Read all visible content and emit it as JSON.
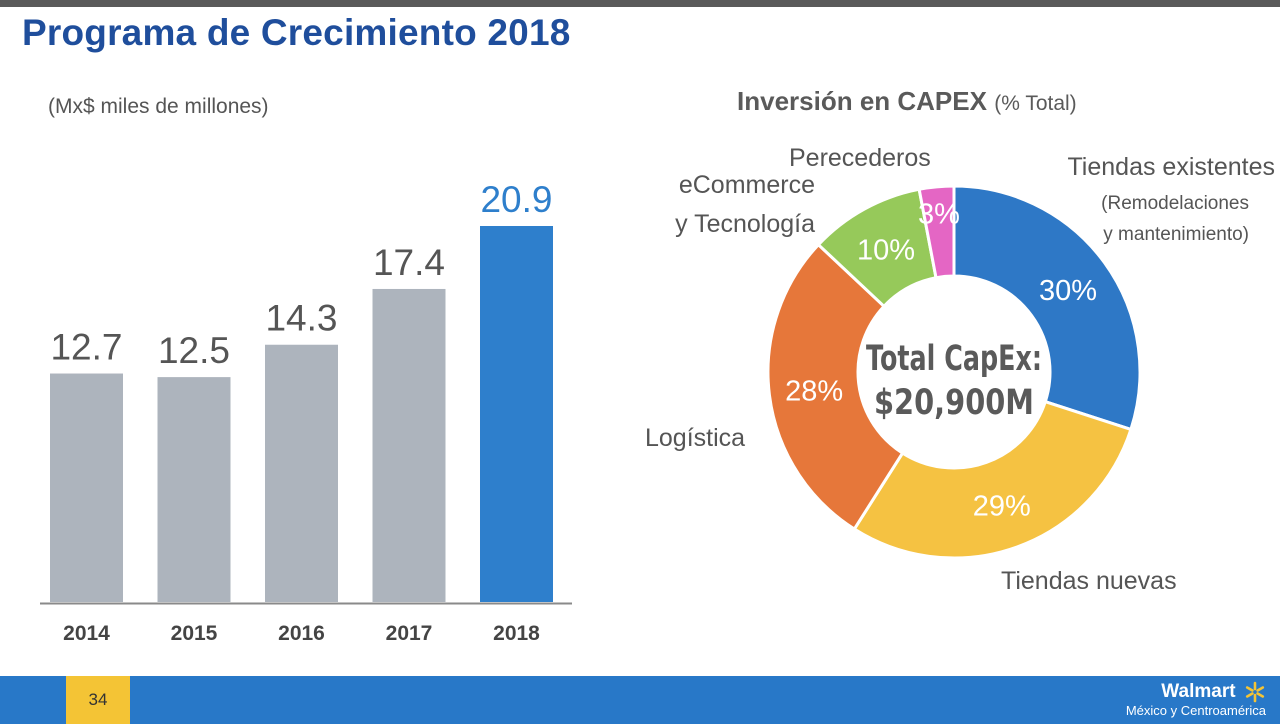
{
  "slide": {
    "title": "Programa de Crecimiento 2018",
    "page_number": "34",
    "brand_name": "Walmart",
    "brand_sub": "México y Centroamérica"
  },
  "colors": {
    "title": "#1f4e9c",
    "bar_default": "#adb4bd",
    "bar_highlight": "#2e7fcc",
    "footer": "#2878c8",
    "page_box": "#f4c435",
    "brand_spark": "#f4c435"
  },
  "chart_data": [
    {
      "type": "bar",
      "subtitle": "(Mx$ miles de millones)",
      "categories": [
        "2014",
        "2015",
        "2016",
        "2017",
        "2018"
      ],
      "values": [
        12.7,
        12.5,
        14.3,
        17.4,
        20.9
      ],
      "value_labels": [
        "12.7",
        "12.5",
        "14.3",
        "17.4",
        "20.9"
      ],
      "highlight_category": "2018",
      "ylim": [
        0,
        20.9
      ],
      "grid": false
    },
    {
      "type": "pie",
      "variant": "donut",
      "title_bold": "Inversión en CAPEX",
      "title_light": "(% Total)",
      "center_label_line1": "Total CapEx:",
      "center_label_line2": "$20,900M",
      "slices": [
        {
          "name": "Tiendas existentes",
          "sub1": "(Remodelaciones",
          "sub2": "y mantenimiento)",
          "value": 30,
          "label": "30%",
          "color": "#2e78c6"
        },
        {
          "name": "Tiendas nuevas",
          "value": 29,
          "label": "29%",
          "color": "#f5c242"
        },
        {
          "name": "Logística",
          "value": 28,
          "label": "28%",
          "color": "#e6773a"
        },
        {
          "name_line1": "eCommerce",
          "name_line2": "y Tecnología",
          "value": 10,
          "label": "10%",
          "color": "#96c95a"
        },
        {
          "name": "Perecederos",
          "value": 3,
          "label": "3%",
          "color": "#e466c4"
        }
      ]
    }
  ]
}
